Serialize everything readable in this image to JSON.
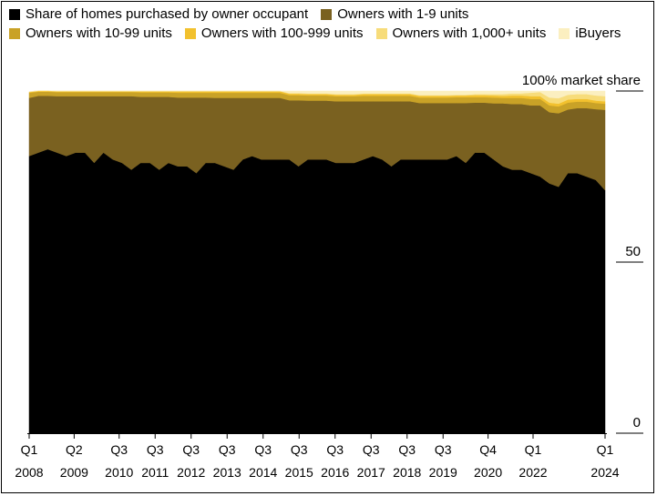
{
  "legend": [
    {
      "label": "Share of homes purchased by owner occupant",
      "color": "#000000"
    },
    {
      "label": "Owners with 1-9 units",
      "color": "#7a6120"
    },
    {
      "label": "Owners with 10-99 units",
      "color": "#c9a227"
    },
    {
      "label": "Owners with 100-999 units",
      "color": "#f2c12e"
    },
    {
      "label": "Owners with 1,000+ units",
      "color": "#f7dc7a"
    },
    {
      "label": "iBuyers",
      "color": "#fbefc0"
    }
  ],
  "chart_data": {
    "type": "area",
    "stacked": true,
    "ylim": [
      0,
      100
    ],
    "yticks": [
      {
        "value": 100,
        "label": "100% market share"
      },
      {
        "value": 50,
        "label": "50"
      },
      {
        "value": 0,
        "label": "0"
      }
    ],
    "x_range": [
      "2008Q1",
      "2024Q1"
    ],
    "xticks": [
      {
        "x": "2008Q1",
        "q": "Q1",
        "year": "2008"
      },
      {
        "x": "2009Q2",
        "q": "Q2",
        "year": "2009"
      },
      {
        "x": "2010Q3",
        "q": "Q3",
        "year": "2010"
      },
      {
        "x": "2011Q3",
        "q": "Q3",
        "year": "2011"
      },
      {
        "x": "2012Q3",
        "q": "Q3",
        "year": "2012"
      },
      {
        "x": "2013Q3",
        "q": "Q3",
        "year": "2013"
      },
      {
        "x": "2014Q3",
        "q": "Q3",
        "year": "2014"
      },
      {
        "x": "2015Q3",
        "q": "Q3",
        "year": "2015"
      },
      {
        "x": "2016Q3",
        "q": "Q3",
        "year": "2016"
      },
      {
        "x": "2017Q3",
        "q": "Q3",
        "year": "2017"
      },
      {
        "x": "2018Q3",
        "q": "Q3",
        "year": "2018"
      },
      {
        "x": "2019Q3",
        "q": "Q3",
        "year": "2019"
      },
      {
        "x": "2020Q4",
        "q": "Q4",
        "year": "2020"
      },
      {
        "x": "2022Q1",
        "q": "Q1",
        "year": "2022"
      },
      {
        "x": "2024Q1",
        "q": "Q1",
        "year": "2024"
      }
    ],
    "series": [
      {
        "name": "Share of homes purchased by owner occupant",
        "color": "#000000",
        "values": [
          81,
          82,
          83,
          82,
          81,
          82,
          82,
          79,
          82,
          80,
          79,
          77,
          79,
          79,
          77,
          79,
          78,
          78,
          76,
          79,
          79,
          78,
          77,
          80,
          81,
          80,
          80,
          80,
          80,
          78,
          80,
          80,
          80,
          79,
          79,
          79,
          80,
          81,
          80,
          78,
          80,
          80,
          80,
          80,
          80,
          80,
          81,
          79,
          82,
          82,
          80,
          78,
          77,
          77,
          76,
          75,
          73,
          72,
          76,
          76,
          75,
          74,
          71
        ]
      },
      {
        "name": "Owners with 1-9 units",
        "color": "#7a6120",
        "values": [
          17,
          16.6,
          15.6,
          16.5,
          17.5,
          16.5,
          16.5,
          19.5,
          16.5,
          18.5,
          19.5,
          21.5,
          19.3,
          19.3,
          21.3,
          19.3,
          20.1,
          20.1,
          22.1,
          19.1,
          19,
          20,
          21,
          18,
          17,
          18,
          18,
          18,
          17.3,
          19.3,
          17.2,
          17.2,
          17.2,
          18,
          18,
          18,
          17,
          16,
          17,
          19,
          17,
          17,
          16.5,
          16.5,
          16.5,
          16.5,
          15.5,
          17.5,
          14.6,
          14.6,
          16.4,
          18.4,
          19.2,
          19.2,
          19.8,
          20.8,
          20.8,
          21.5,
          18.6,
          19,
          20,
          20.7,
          23.5
        ]
      },
      {
        "name": "Owners with 10-99 units",
        "color": "#c9a227",
        "values": [
          1.5,
          1.2,
          1.2,
          1.2,
          1.2,
          1.2,
          1.2,
          1.2,
          1.2,
          1.2,
          1.2,
          1.2,
          1.3,
          1.3,
          1.3,
          1.3,
          1.4,
          1.4,
          1.4,
          1.4,
          1.5,
          1.5,
          1.5,
          1.5,
          1.5,
          1.5,
          1.5,
          1.5,
          1.5,
          1.5,
          1.5,
          1.5,
          1.5,
          1.5,
          1.5,
          1.5,
          1.6,
          1.6,
          1.6,
          1.6,
          1.6,
          1.6,
          1.6,
          1.6,
          1.6,
          1.6,
          1.7,
          1.7,
          1.6,
          1.6,
          1.7,
          1.6,
          1.8,
          1.8,
          1.9,
          1.9,
          2,
          2,
          2,
          1.9,
          1.9,
          1.8,
          1.8
        ]
      },
      {
        "name": "Owners with 100-999 units",
        "color": "#f2c12e",
        "values": [
          0.2,
          0.2,
          0.2,
          0.2,
          0.2,
          0.2,
          0.2,
          0.2,
          0.2,
          0.2,
          0.2,
          0.2,
          0.3,
          0.3,
          0.3,
          0.3,
          0.4,
          0.4,
          0.4,
          0.4,
          0.4,
          0.4,
          0.4,
          0.4,
          0.4,
          0.4,
          0.4,
          0.4,
          0.4,
          0.4,
          0.4,
          0.4,
          0.4,
          0.4,
          0.4,
          0.4,
          0.5,
          0.5,
          0.5,
          0.5,
          0.5,
          0.5,
          0.5,
          0.5,
          0.5,
          0.5,
          0.5,
          0.5,
          0.6,
          0.6,
          0.6,
          0.6,
          0.7,
          0.7,
          0.8,
          0.8,
          0.8,
          0.8,
          0.9,
          0.8,
          0.8,
          0.7,
          0.7
        ]
      },
      {
        "name": "Owners with 1,000+ units",
        "color": "#f7dc7a",
        "values": [
          0.1,
          0.1,
          0.1,
          0.1,
          0.1,
          0.1,
          0.1,
          0.1,
          0.1,
          0.1,
          0.1,
          0.1,
          0.1,
          0.1,
          0.1,
          0.1,
          0.1,
          0.1,
          0.1,
          0.1,
          0.1,
          0.1,
          0.1,
          0.1,
          0.1,
          0.1,
          0.1,
          0.1,
          0.2,
          0.2,
          0.2,
          0.2,
          0.2,
          0.2,
          0.2,
          0.2,
          0.2,
          0.2,
          0.2,
          0.2,
          0.2,
          0.2,
          0.2,
          0.2,
          0.2,
          0.2,
          0.2,
          0.2,
          0.3,
          0.3,
          0.4,
          0.5,
          0.6,
          0.6,
          1.0,
          1.2,
          1.5,
          1.6,
          1.4,
          1.4,
          1.4,
          1.5,
          1.5
        ]
      },
      {
        "name": "iBuyers",
        "color": "#fbefc0",
        "values": [
          0,
          0,
          0,
          0,
          0,
          0,
          0,
          0,
          0,
          0,
          0,
          0,
          0,
          0,
          0,
          0,
          0,
          0,
          0,
          0,
          0,
          0,
          0,
          0,
          0,
          0,
          0,
          0,
          0.6,
          0.6,
          0.7,
          0.7,
          0.7,
          0.9,
          0.9,
          0.9,
          0.7,
          0.7,
          0.7,
          0.7,
          0.7,
          0.7,
          1.2,
          1.2,
          1.2,
          1.2,
          1.1,
          1.1,
          0.9,
          0.9,
          0.9,
          0.9,
          0.7,
          0.7,
          0.5,
          0.3,
          1.9,
          2.1,
          1.1,
          0.9,
          0.9,
          1.3,
          1.5
        ]
      }
    ]
  }
}
